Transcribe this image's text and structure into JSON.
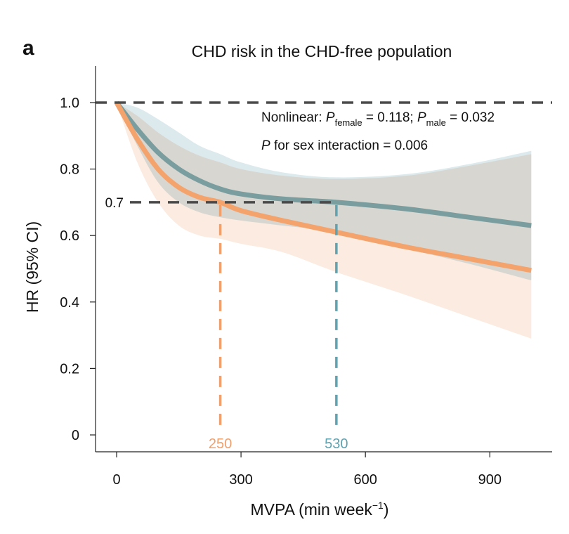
{
  "panel_label": "a",
  "chart_data": {
    "type": "line",
    "title": "CHD risk in the CHD-free population",
    "xlabel": "MVPA (min week",
    "xlabel_sup": "−1",
    "xlabel_end": ")",
    "ylabel": "HR (95% CI)",
    "xlim": [
      -50,
      1050
    ],
    "ylim": [
      -0.05,
      1.1
    ],
    "x_ticks": [
      0,
      300,
      600,
      900
    ],
    "x_tick_labels": [
      "0",
      "300",
      "600",
      "900"
    ],
    "y_ticks": [
      0,
      0.2,
      0.4,
      0.6,
      0.8,
      1.0
    ],
    "y_tick_labels": [
      "0",
      "0.2",
      "0.4",
      "0.6",
      "0.8",
      "1.0"
    ],
    "grid": false,
    "x": [
      0,
      50,
      100,
      150,
      200,
      250,
      300,
      400,
      530,
      700,
      850,
      1000
    ],
    "series": [
      {
        "key": "male",
        "color": "#7a9e9f",
        "band_color": "#dce9ed",
        "values": [
          1.0,
          0.92,
          0.85,
          0.8,
          0.765,
          0.74,
          0.725,
          0.71,
          0.7,
          0.68,
          0.655,
          0.63
        ],
        "upper": [
          1.0,
          0.985,
          0.95,
          0.91,
          0.87,
          0.845,
          0.82,
          0.79,
          0.775,
          0.785,
          0.815,
          0.855
        ],
        "lower": [
          1.0,
          0.87,
          0.76,
          0.7,
          0.67,
          0.655,
          0.645,
          0.63,
          0.61,
          0.56,
          0.515,
          0.465
        ]
      },
      {
        "key": "female",
        "color": "#f4a36c",
        "band_color": "#fbebe0",
        "values": [
          1.0,
          0.89,
          0.8,
          0.745,
          0.715,
          0.7,
          0.675,
          0.645,
          0.61,
          0.565,
          0.53,
          0.495
        ],
        "upper": [
          1.0,
          0.96,
          0.91,
          0.87,
          0.84,
          0.82,
          0.8,
          0.78,
          0.77,
          0.78,
          0.81,
          0.845
        ],
        "lower": [
          1.0,
          0.82,
          0.7,
          0.63,
          0.6,
          0.59,
          0.575,
          0.55,
          0.49,
          0.42,
          0.355,
          0.29
        ]
      }
    ],
    "reference_line": {
      "y": 1.0,
      "color": "#4a4a4a"
    },
    "threshold": {
      "y": 0.7,
      "label": "0.7",
      "color": "#4a4a4a"
    },
    "markers": [
      {
        "x": 250,
        "label": "250",
        "color": "#f0a06c"
      },
      {
        "x": 530,
        "label": "530",
        "color": "#5fa2b0"
      }
    ],
    "annotations": {
      "line1_prefix": "Nonlinear: ",
      "p": "P",
      "female_sub": "female",
      "female_val": " = 0.118; ",
      "male_sub": "male",
      "male_val": " = 0.032",
      "line2_rest": " for sex interaction = 0.006"
    }
  }
}
